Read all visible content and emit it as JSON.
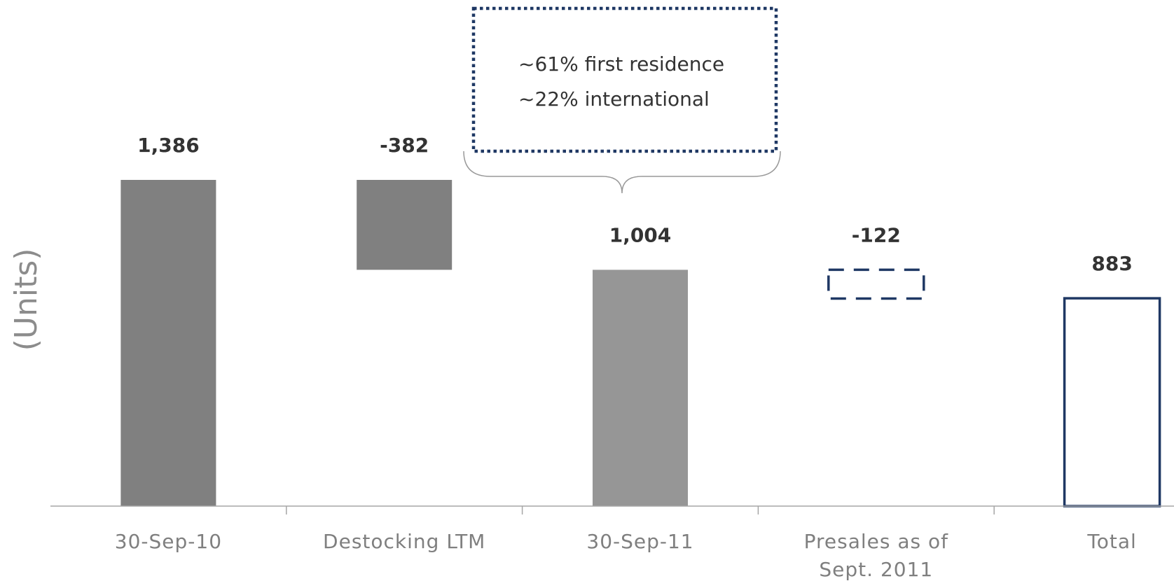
{
  "chart_data": {
    "type": "bar",
    "subtype": "waterfall",
    "ylabel": "(Units)",
    "categories": [
      "30-Sep-10",
      "Destocking LTM",
      "30-Sep-11",
      "Presales as of Sept. 2011",
      "Total"
    ],
    "category_lines": [
      [
        "30-Sep-10"
      ],
      [
        "Destocking LTM"
      ],
      [
        "30-Sep-11"
      ],
      [
        "Presales as of",
        "Sept. 2011"
      ],
      [
        "Total"
      ]
    ],
    "values": [
      1386,
      -382,
      1004,
      -122,
      883
    ],
    "data_labels": [
      "1,386",
      "-382",
      "1,004",
      "-122",
      "883"
    ],
    "bar_kinds": [
      "total",
      "delta",
      "total",
      "delta",
      "total"
    ],
    "ylim": [
      0,
      1386
    ],
    "grid": false,
    "legend": "none",
    "annotation": {
      "lines": [
        "~61% first residence",
        "~22% international"
      ],
      "applies_to": "30-Sep-11"
    },
    "colors": {
      "dark_grey": "#808080",
      "light_grey": "#969696",
      "navy": "#1f3864",
      "callout_border": "#1f3864",
      "axis": "#a6a6a6",
      "brace": "#999999"
    }
  }
}
